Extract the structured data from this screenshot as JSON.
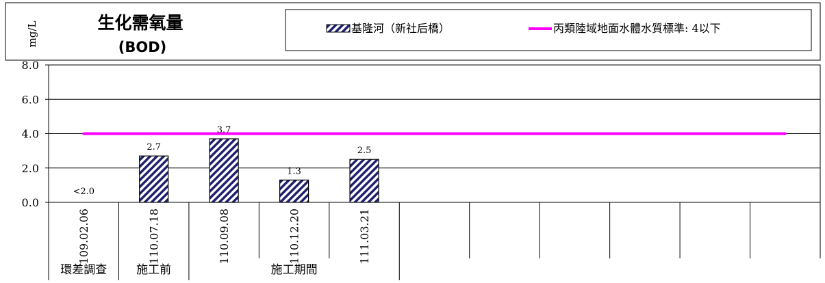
{
  "colors": {
    "bar_fill": "#1f1f6e",
    "standard_line": "#ff00ff",
    "grid": "#000000",
    "text": "#000000",
    "background": "#ffffff"
  },
  "chart_data": {
    "type": "bar",
    "title": "生化需氧量",
    "subtitle": "(BOD)",
    "ylabel": "mg/L",
    "ylim": [
      0,
      8
    ],
    "yticks": [
      "0.0",
      "2.0",
      "4.0",
      "6.0",
      "8.0"
    ],
    "ytick_values": [
      0,
      2,
      4,
      6,
      8
    ],
    "categories": [
      "109.02.06",
      "110.07.18",
      "110.09.08",
      "110.12.20",
      "111.03.21",
      "",
      "",
      "",
      "",
      "",
      ""
    ],
    "series": [
      {
        "name": "基隆河（新社后橋）",
        "values": [
          null,
          2.7,
          3.7,
          1.3,
          2.5,
          null,
          null,
          null,
          null,
          null,
          null
        ],
        "labels": [
          "<2.0",
          "2.7",
          "3.7",
          "1.3",
          "2.5",
          "",
          "",
          "",
          "",
          "",
          ""
        ]
      }
    ],
    "reference_line": {
      "name": "丙類陸域地面水體水質標準: 4以下",
      "value": 4
    },
    "phases": [
      {
        "label": "環差調查",
        "start": 0,
        "end": 1
      },
      {
        "label": "施工前",
        "start": 1,
        "end": 2
      },
      {
        "label": "施工期間",
        "start": 2,
        "end": 5
      }
    ],
    "grid": true,
    "legend_position": "top-right"
  }
}
